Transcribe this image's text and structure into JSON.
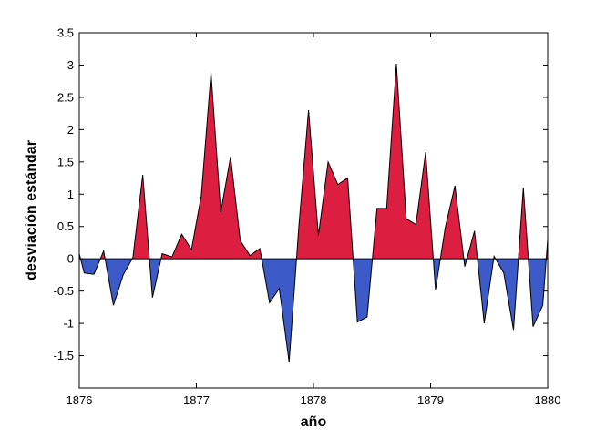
{
  "chart_data": {
    "type": "area",
    "xlabel": "año",
    "ylabel": "desviación estándar",
    "xlim": [
      1876,
      1880
    ],
    "ylim": [
      -2,
      3.5
    ],
    "xticks": [
      1876,
      1877,
      1878,
      1879,
      1880
    ],
    "yticks": [
      -1.5,
      -1,
      -0.5,
      0,
      0.5,
      1,
      1.5,
      2,
      2.5,
      3,
      3.5
    ],
    "ytick_labels": [
      "-1.5",
      "-1",
      "-0.5",
      "0",
      "0.5",
      "1",
      "1.5",
      "2",
      "2.5",
      "3",
      "3.5"
    ],
    "grid": false,
    "positive_color": "#dc1e41",
    "negative_color": "#3c5ac8",
    "series": [
      {
        "x": [
          1876.0,
          1876.042,
          1876.125,
          1876.208,
          1876.292,
          1876.375,
          1876.458,
          1876.542,
          1876.625,
          1876.708,
          1876.792,
          1876.875,
          1876.958,
          1877.042,
          1877.125,
          1877.208,
          1877.292,
          1877.375,
          1877.458,
          1877.542,
          1877.625,
          1877.708,
          1877.792,
          1877.875,
          1877.958,
          1878.042,
          1878.125,
          1878.208,
          1878.292,
          1878.375,
          1878.458,
          1878.542,
          1878.625,
          1878.708,
          1878.792,
          1878.875,
          1878.958,
          1879.042,
          1879.125,
          1879.208,
          1879.292,
          1879.375,
          1879.458,
          1879.542,
          1879.625,
          1879.708,
          1879.792,
          1879.875,
          1879.958,
          1880.0
        ],
        "y": [
          0.08,
          -0.22,
          -0.24,
          0.12,
          -0.72,
          -0.25,
          0.02,
          1.3,
          -0.6,
          0.08,
          0.03,
          0.38,
          0.14,
          0.98,
          2.88,
          0.72,
          1.58,
          0.28,
          0.05,
          0.16,
          -0.68,
          -0.46,
          -1.6,
          0.5,
          2.3,
          0.36,
          1.5,
          1.15,
          1.25,
          -0.98,
          -0.9,
          0.78,
          0.78,
          3.02,
          0.62,
          0.53,
          1.65,
          -0.48,
          0.48,
          1.13,
          -0.12,
          0.43,
          -1.0,
          0.04,
          -0.22,
          -1.1,
          1.1,
          -1.05,
          -0.72,
          0.3
        ]
      }
    ]
  }
}
